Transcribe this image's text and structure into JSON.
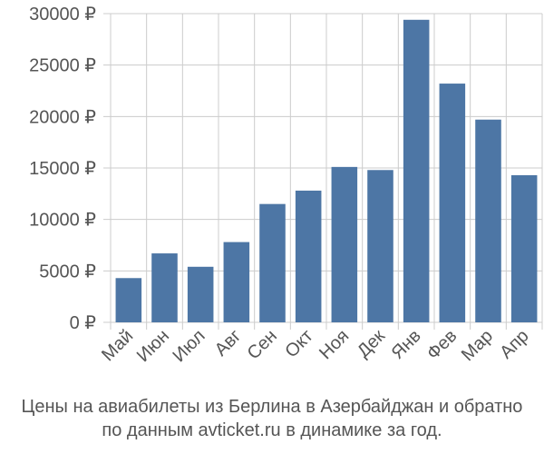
{
  "chart_data": {
    "type": "bar",
    "categories": [
      "Май",
      "Июн",
      "Июл",
      "Авг",
      "Сен",
      "Окт",
      "Ноя",
      "Дек",
      "Янв",
      "Фев",
      "Мар",
      "Апр"
    ],
    "values": [
      4300,
      6700,
      5400,
      7800,
      11500,
      12800,
      15100,
      14800,
      29400,
      23200,
      19700,
      14300
    ],
    "ylim": [
      0,
      30000
    ],
    "yticks": [
      0,
      5000,
      10000,
      15000,
      20000,
      25000,
      30000
    ],
    "ytick_labels": [
      "0 ₽",
      "5000 ₽",
      "10000 ₽",
      "15000 ₽",
      "20000 ₽",
      "25000 ₽",
      "30000 ₽"
    ],
    "grid": true,
    "bar_color": "#4d76a5",
    "grid_color": "#cccccc"
  },
  "caption": {
    "line1": "Цены на авиабилеты из Берлина в Азербайджан и обратно",
    "line2": "по данным avticket.ru в динамике за год."
  }
}
